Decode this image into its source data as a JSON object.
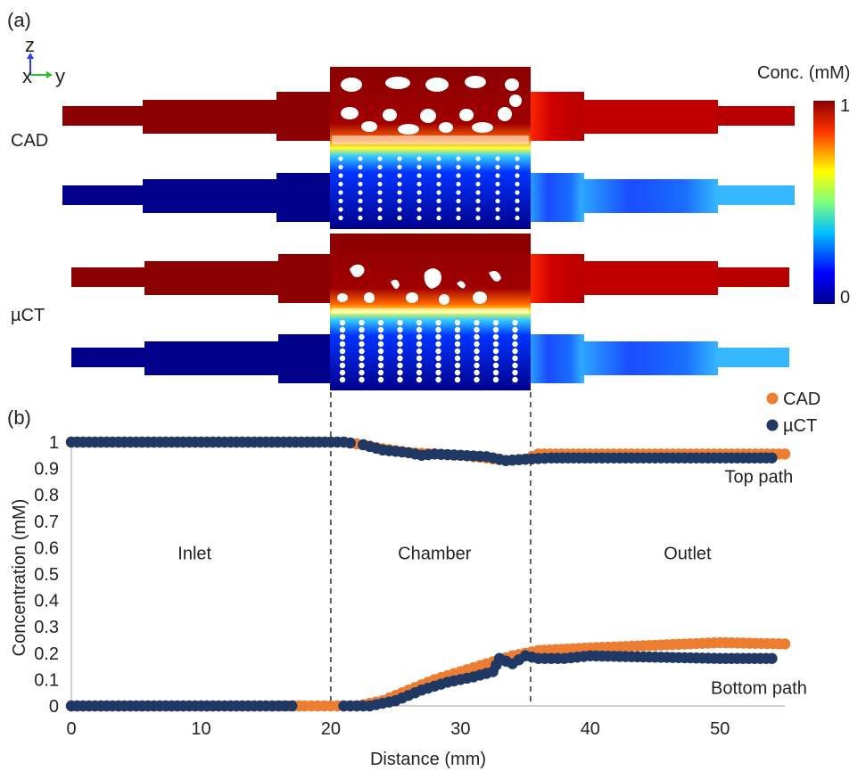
{
  "panels": {
    "a_label": "(a)",
    "b_label": "(b)"
  },
  "axes_glyph": {
    "z": "z",
    "x": "x",
    "y": "y"
  },
  "simulation": {
    "row_labels": [
      "CAD",
      "µCT"
    ],
    "colorbar": {
      "title": "Conc. (mM)",
      "max_label": "1",
      "min_label": "0"
    },
    "colors": {
      "high": "#8b0000",
      "low": "#00008b"
    }
  },
  "chart_data": {
    "type": "scatter",
    "xlabel": "Distance (mm)",
    "ylabel": "Concentration (mM)",
    "xlim": [
      0,
      55
    ],
    "ylim": [
      0,
      1
    ],
    "xticks": [
      "0",
      "10",
      "20",
      "30",
      "40",
      "50"
    ],
    "yticks": [
      "0",
      "0.1",
      "0.2",
      "0.3",
      "0.4",
      "0.5",
      "0.6",
      "0.7",
      "0.8",
      "0.9",
      "1"
    ],
    "legend": [
      "CAD",
      "µCT"
    ],
    "legend_position": "top-right",
    "grid": false,
    "region_boundaries": [
      20,
      35.4
    ],
    "region_labels": [
      {
        "text": "Inlet",
        "x": 9.5,
        "y": 0.58
      },
      {
        "text": "Chamber",
        "x": 28,
        "y": 0.58
      },
      {
        "text": "Outlet",
        "x": 47.5,
        "y": 0.58
      }
    ],
    "path_labels": [
      {
        "text": "Top path",
        "x": 53,
        "y": 0.87
      },
      {
        "text": "Bottom path",
        "x": 53,
        "y": 0.07
      }
    ],
    "series": [
      {
        "name": "CAD",
        "color": "#ed7d31",
        "top": [
          [
            0,
            1
          ],
          [
            5,
            1
          ],
          [
            10,
            1
          ],
          [
            15,
            1
          ],
          [
            20,
            1
          ],
          [
            21,
            1
          ],
          [
            22.5,
            0.99
          ],
          [
            24,
            0.975
          ],
          [
            26,
            0.96
          ],
          [
            28,
            0.955
          ],
          [
            30,
            0.95
          ],
          [
            32,
            0.94
          ],
          [
            33.5,
            0.93
          ],
          [
            35,
            0.935
          ],
          [
            36,
            0.955
          ],
          [
            40,
            0.955
          ],
          [
            45,
            0.955
          ],
          [
            50,
            0.955
          ],
          [
            55,
            0.955
          ]
        ],
        "bottom": [
          [
            0,
            0
          ],
          [
            5,
            0
          ],
          [
            10,
            0
          ],
          [
            15,
            0
          ],
          [
            18,
            0
          ],
          [
            20,
            0
          ],
          [
            22,
            0
          ],
          [
            24,
            0.02
          ],
          [
            26,
            0.06
          ],
          [
            28,
            0.1
          ],
          [
            30,
            0.13
          ],
          [
            32,
            0.16
          ],
          [
            34,
            0.19
          ],
          [
            36,
            0.21
          ],
          [
            40,
            0.22
          ],
          [
            45,
            0.23
          ],
          [
            50,
            0.24
          ],
          [
            55,
            0.235
          ]
        ]
      },
      {
        "name": "µCT",
        "color": "#203864",
        "top": [
          [
            0,
            1
          ],
          [
            5,
            1
          ],
          [
            10,
            1
          ],
          [
            15,
            1
          ],
          [
            20,
            1
          ],
          [
            21,
            1
          ],
          [
            22.5,
            0.99
          ],
          [
            24,
            0.97
          ],
          [
            26,
            0.96
          ],
          [
            27,
            0.95
          ],
          [
            28,
            0.955
          ],
          [
            30,
            0.95
          ],
          [
            32,
            0.945
          ],
          [
            33.5,
            0.93
          ],
          [
            35,
            0.935
          ],
          [
            37,
            0.94
          ],
          [
            40,
            0.94
          ],
          [
            45,
            0.94
          ],
          [
            50,
            0.94
          ],
          [
            54,
            0.94
          ]
        ],
        "bottom": [
          [
            0,
            0
          ],
          [
            5,
            0
          ],
          [
            10,
            0
          ],
          [
            15,
            0
          ],
          [
            17,
            0
          ],
          [
            21,
            0
          ],
          [
            23,
            0
          ],
          [
            25,
            0.02
          ],
          [
            27,
            0.06
          ],
          [
            29,
            0.09
          ],
          [
            31,
            0.11
          ],
          [
            32.5,
            0.13
          ],
          [
            33,
            0.18
          ],
          [
            34,
            0.16
          ],
          [
            35,
            0.19
          ],
          [
            36,
            0.18
          ],
          [
            38,
            0.18
          ],
          [
            40,
            0.19
          ],
          [
            45,
            0.185
          ],
          [
            50,
            0.18
          ],
          [
            54,
            0.18
          ]
        ]
      }
    ]
  }
}
